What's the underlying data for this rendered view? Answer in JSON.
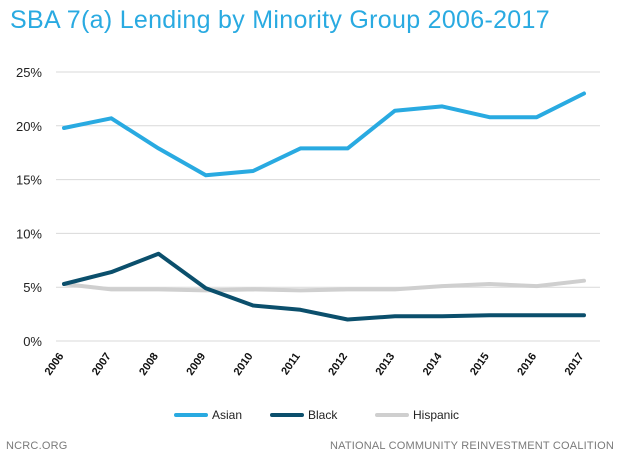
{
  "title": "SBA 7(a) Lending by Minority Group 2006-2017",
  "footer": {
    "left": "NCRC.ORG",
    "right": "NATIONAL COMMUNITY REINVESTMENT COALITION"
  },
  "chart_data": {
    "type": "line",
    "title": "SBA 7(a) Lending by Minority Group 2006-2017",
    "xlabel": "",
    "ylabel": "",
    "categories": [
      "2006",
      "2007",
      "2008",
      "2009",
      "2010",
      "2011",
      "2012",
      "2013",
      "2014",
      "2015",
      "2016",
      "2017"
    ],
    "ylim": [
      0,
      25
    ],
    "yticks": [
      0,
      5,
      10,
      15,
      20,
      25
    ],
    "ytick_labels": [
      "0%",
      "5%",
      "10%",
      "15%",
      "20%",
      "25%"
    ],
    "grid": true,
    "legend_position": "bottom",
    "series": [
      {
        "name": "Asian",
        "color": "#29aae1",
        "values": [
          19.8,
          20.7,
          17.9,
          15.4,
          15.8,
          17.9,
          17.9,
          21.4,
          21.8,
          20.8,
          20.8,
          23.0
        ]
      },
      {
        "name": "Black",
        "color": "#0b4f6c",
        "values": [
          5.3,
          6.4,
          8.1,
          4.9,
          3.3,
          2.9,
          2.0,
          2.3,
          2.3,
          2.4,
          2.4,
          2.4
        ]
      },
      {
        "name": "Hispanic",
        "color": "#cfcfcf",
        "values": [
          5.3,
          4.8,
          4.8,
          4.7,
          4.8,
          4.7,
          4.8,
          4.8,
          5.1,
          5.3,
          5.1,
          5.6
        ]
      }
    ]
  }
}
